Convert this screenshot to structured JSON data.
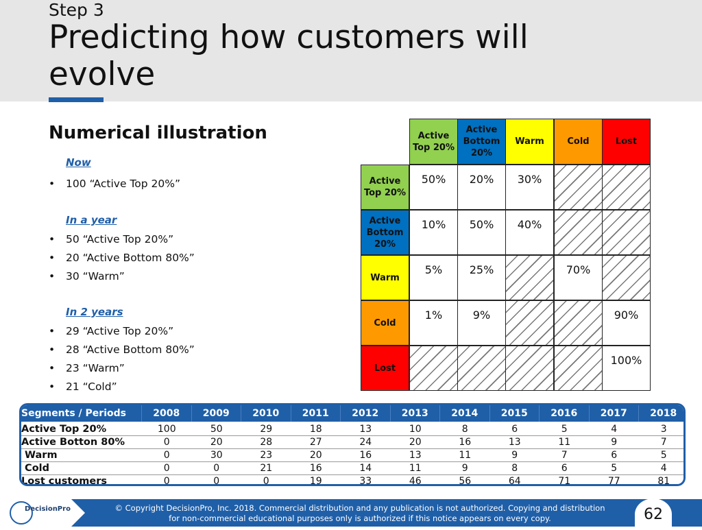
{
  "header": {
    "step": "Step 3",
    "title": "Predicting how customers will evolve"
  },
  "subtitle": "Numerical illustration",
  "sections": [
    {
      "heading": "Now",
      "bullets": [
        "100 “Active Top 20%”"
      ]
    },
    {
      "heading": "In a year",
      "bullets": [
        "50 “Active Top 20%”",
        "20 “Active Bottom 80%”",
        "30 “Warm”"
      ]
    },
    {
      "heading": "In 2 years",
      "bullets": [
        "29 “Active Top 20%”",
        "28 “Active Bottom 80%”",
        "23 “Warm”",
        "21 “Cold”"
      ]
    }
  ],
  "bullet_char": "•",
  "matrix": {
    "columns": [
      {
        "label": "Active Top 20%",
        "color": "#92d050"
      },
      {
        "label": "Active Bottom 20%",
        "color": "#0070c0"
      },
      {
        "label": "Warm",
        "color": "#ffff00"
      },
      {
        "label": "Cold",
        "color": "#ff9900"
      },
      {
        "label": "Lost",
        "color": "#ff0000"
      }
    ],
    "rows": [
      {
        "label": "Active Top 20%",
        "color": "#92d050",
        "values": [
          "50%",
          "20%",
          "30%",
          null,
          null
        ]
      },
      {
        "label": "Active Bottom 20%",
        "color": "#0070c0",
        "values": [
          "10%",
          "50%",
          "40%",
          null,
          null
        ]
      },
      {
        "label": "Warm",
        "color": "#ffff00",
        "values": [
          "5%",
          "25%",
          null,
          "70%",
          null
        ]
      },
      {
        "label": "Cold",
        "color": "#ff9900",
        "values": [
          "1%",
          "9%",
          null,
          null,
          "90%"
        ]
      },
      {
        "label": "Lost",
        "color": "#ff0000",
        "values": [
          null,
          null,
          null,
          null,
          "100%"
        ]
      }
    ]
  },
  "table": {
    "header_label": "Segments / Periods",
    "years": [
      "2008",
      "2009",
      "2010",
      "2011",
      "2012",
      "2013",
      "2014",
      "2015",
      "2016",
      "2017",
      "2018"
    ],
    "rows": [
      {
        "label": "Active Top 20%",
        "values": [
          "100",
          "50",
          "29",
          "18",
          "13",
          "10",
          "8",
          "6",
          "5",
          "4",
          "3"
        ]
      },
      {
        "label": "Active Botton 80%",
        "values": [
          "0",
          "20",
          "28",
          "27",
          "24",
          "20",
          "16",
          "13",
          "11",
          "9",
          "7"
        ]
      },
      {
        "label": " Warm",
        "values": [
          "0",
          "30",
          "23",
          "20",
          "16",
          "13",
          "11",
          "9",
          "7",
          "6",
          "5"
        ]
      },
      {
        "label": " Cold",
        "values": [
          "0",
          "0",
          "21",
          "16",
          "14",
          "11",
          "9",
          "8",
          "6",
          "5",
          "4"
        ]
      },
      {
        "label": "Lost customers",
        "values": [
          "0",
          "0",
          "0",
          "19",
          "33",
          "46",
          "56",
          "64",
          "71",
          "77",
          "81"
        ]
      }
    ]
  },
  "footer": {
    "logo_text": "DecisionPro",
    "copyright_line1": "© Copyright DecisionPro, Inc.  2018. Commercial distribution and any publication is not authorized. Copying and distribution",
    "copyright_line2": "for non-commercial educational purposes only is authorized if this notice appears on every copy.",
    "page_number": "62"
  },
  "colors": {
    "accent": "#1f5fa8",
    "header_bg": "#e6e6e6"
  }
}
